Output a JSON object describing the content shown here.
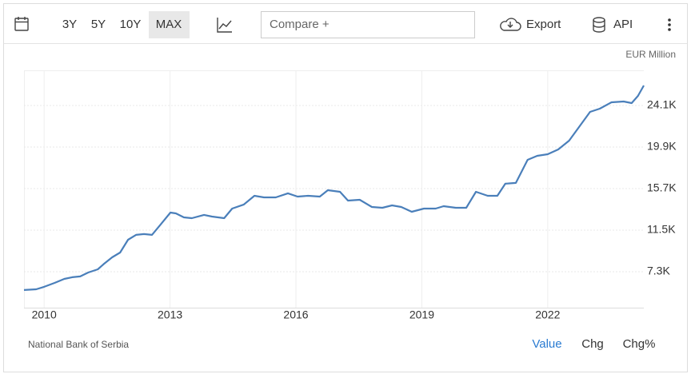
{
  "toolbar": {
    "ranges": [
      "3Y",
      "5Y",
      "10Y",
      "MAX"
    ],
    "compare": "Compare +",
    "export": "Export",
    "api": "API"
  },
  "footer": {
    "tabs": [
      "Value",
      "Chg",
      "Chg%"
    ]
  },
  "chart_data": {
    "type": "line",
    "unit": "EUR Million",
    "source": "National Bank of Serbia",
    "color": "#4a7fba",
    "grid": true,
    "x": [
      2009.52,
      2009.81,
      2010,
      2010.25,
      2010.48,
      2010.67,
      2010.86,
      2011.05,
      2011.28,
      2011.43,
      2011.62,
      2011.81,
      2012,
      2012.19,
      2012.38,
      2012.57,
      2012.76,
      2013.01,
      2013.14,
      2013.33,
      2013.52,
      2013.81,
      2014,
      2014.29,
      2014.48,
      2014.76,
      2015.01,
      2015.24,
      2015.52,
      2015.81,
      2016.04,
      2016.29,
      2016.57,
      2016.76,
      2017.05,
      2017.24,
      2017.52,
      2017.81,
      2018.06,
      2018.29,
      2018.51,
      2018.76,
      2019.05,
      2019.33,
      2019.52,
      2019.81,
      2020.06,
      2020.29,
      2020.57,
      2020.8,
      2020.99,
      2021.24,
      2021.52,
      2021.75,
      2022,
      2022.25,
      2022.51,
      2022.76,
      2023.01,
      2023.24,
      2023.52,
      2023.81,
      2024,
      2024.15,
      2024.29
    ],
    "values": [
      5450,
      5520,
      5770,
      6170,
      6570,
      6740,
      6820,
      7220,
      7540,
      8110,
      8750,
      9240,
      10530,
      11020,
      11100,
      11020,
      11990,
      13280,
      13200,
      12790,
      12710,
      13040,
      12870,
      12710,
      13680,
      14090,
      14970,
      14810,
      14810,
      15220,
      14890,
      14970,
      14890,
      15540,
      15380,
      14490,
      14570,
      13840,
      13760,
      14000,
      13840,
      13360,
      13680,
      13680,
      13920,
      13760,
      13760,
      15380,
      14970,
      14970,
      16190,
      16270,
      18610,
      19010,
      19170,
      19660,
      20550,
      22000,
      23450,
      23780,
      24420,
      24500,
      24340,
      25070,
      26120
    ],
    "xlim": [
      2009.52,
      2024.29
    ],
    "xticks": [
      2010,
      2013,
      2016,
      2019,
      2022
    ],
    "ylim": [
      3665,
      27654
    ],
    "yticks": [
      {
        "value": 7300,
        "label": "7.3K"
      },
      {
        "value": 11500,
        "label": "11.5K"
      },
      {
        "value": 15700,
        "label": "15.7K"
      },
      {
        "value": 19900,
        "label": "19.9K"
      },
      {
        "value": 24100,
        "label": "24.1K"
      }
    ]
  }
}
